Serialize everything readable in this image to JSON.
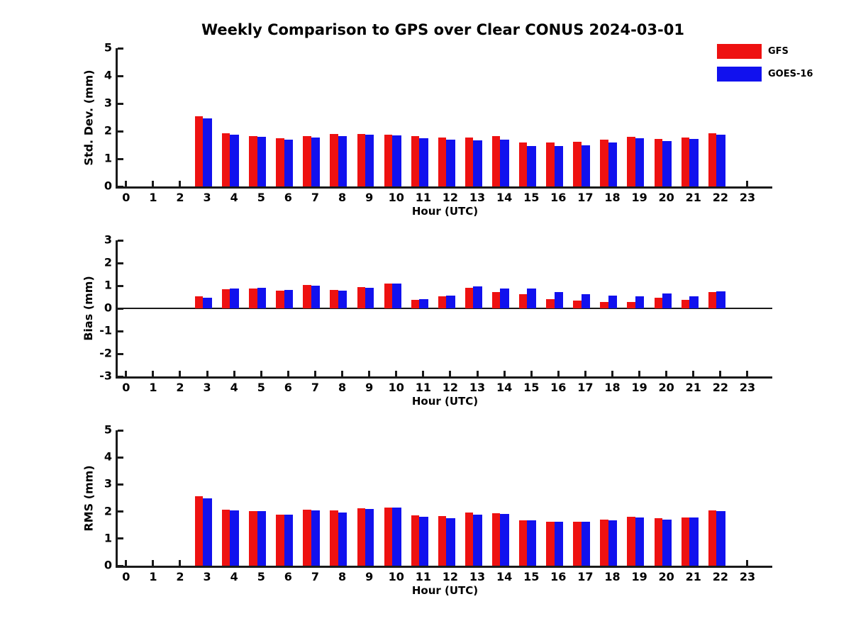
{
  "title": "Weekly Comparison to GPS over Clear CONUS 2024-03-01",
  "colors": {
    "gfs": "#ee1111",
    "goes16": "#1111ee",
    "axis": "#1a1a1a",
    "background": "#ffffff"
  },
  "legend": {
    "position": "top-right",
    "items": [
      {
        "label": "GFS",
        "color": "#ee1111"
      },
      {
        "label": "GOES-16",
        "color": "#1111ee"
      }
    ]
  },
  "chart_data": [
    {
      "type": "bar",
      "title": "",
      "xlabel": "Hour (UTC)",
      "ylabel": "Std. Dev. (mm)",
      "ylim": [
        0,
        5
      ],
      "yticks": [
        0,
        1,
        2,
        3,
        4,
        5
      ],
      "xlim": [
        -0.31,
        23.92
      ],
      "grid": false,
      "categories": [
        0,
        1,
        2,
        3,
        4,
        5,
        6,
        7,
        8,
        9,
        10,
        11,
        12,
        13,
        14,
        15,
        16,
        17,
        18,
        19,
        20,
        21,
        22,
        23
      ],
      "series": [
        {
          "name": "GFS",
          "color": "#ee1111",
          "values": [
            null,
            null,
            null,
            2.55,
            1.92,
            1.81,
            1.74,
            1.81,
            1.9,
            1.9,
            1.88,
            1.82,
            1.77,
            1.76,
            1.83,
            1.59,
            1.58,
            1.61,
            1.69,
            1.8,
            1.72,
            1.77,
            1.93,
            null
          ]
        },
        {
          "name": "GOES-16",
          "color": "#1111ee",
          "values": [
            null,
            null,
            null,
            2.47,
            1.86,
            1.8,
            1.7,
            1.76,
            1.83,
            1.87,
            1.85,
            1.74,
            1.68,
            1.66,
            1.69,
            1.47,
            1.47,
            1.5,
            1.59,
            1.74,
            1.63,
            1.72,
            1.88,
            null
          ]
        }
      ]
    },
    {
      "type": "bar",
      "title": "",
      "xlabel": "Hour (UTC)",
      "ylabel": "Bias (mm)",
      "ylim": [
        -3,
        3
      ],
      "yticks": [
        -3,
        -2,
        -1,
        0,
        1,
        2,
        3
      ],
      "xlim": [
        -0.31,
        23.92
      ],
      "grid": false,
      "zero_line": true,
      "categories": [
        0,
        1,
        2,
        3,
        4,
        5,
        6,
        7,
        8,
        9,
        10,
        11,
        12,
        13,
        14,
        15,
        16,
        17,
        18,
        19,
        20,
        21,
        22,
        23
      ],
      "series": [
        {
          "name": "GFS",
          "color": "#ee1111",
          "values": [
            null,
            null,
            null,
            0.52,
            0.85,
            0.89,
            0.77,
            1.03,
            0.8,
            0.94,
            1.08,
            0.38,
            0.53,
            0.9,
            0.71,
            0.62,
            0.4,
            0.33,
            0.28,
            0.28,
            0.47,
            0.37,
            0.71,
            null
          ]
        },
        {
          "name": "GOES-16",
          "color": "#1111ee",
          "values": [
            null,
            null,
            null,
            0.48,
            0.88,
            0.92,
            0.8,
            1.0,
            0.77,
            0.9,
            1.1,
            0.42,
            0.55,
            0.96,
            0.86,
            0.86,
            0.72,
            0.62,
            0.57,
            0.53,
            0.66,
            0.53,
            0.75,
            null
          ]
        }
      ]
    },
    {
      "type": "bar",
      "title": "",
      "xlabel": "Hour (UTC)",
      "ylabel": "RMS (mm)",
      "ylim": [
        0,
        5
      ],
      "yticks": [
        0,
        1,
        2,
        3,
        4,
        5
      ],
      "xlim": [
        -0.31,
        23.92
      ],
      "grid": false,
      "categories": [
        0,
        1,
        2,
        3,
        4,
        5,
        6,
        7,
        8,
        9,
        10,
        11,
        12,
        13,
        14,
        15,
        16,
        17,
        18,
        19,
        20,
        21,
        22,
        23
      ],
      "series": [
        {
          "name": "GFS",
          "color": "#ee1111",
          "values": [
            null,
            null,
            null,
            2.57,
            2.08,
            2.02,
            1.88,
            2.08,
            2.04,
            2.13,
            2.14,
            1.86,
            1.83,
            1.96,
            1.93,
            1.67,
            1.62,
            1.63,
            1.69,
            1.8,
            1.76,
            1.79,
            2.04,
            null
          ]
        },
        {
          "name": "GOES-16",
          "color": "#1111ee",
          "values": [
            null,
            null,
            null,
            2.49,
            2.05,
            2.01,
            1.88,
            2.04,
            1.96,
            2.09,
            2.15,
            1.8,
            1.76,
            1.89,
            1.9,
            1.67,
            1.62,
            1.62,
            1.67,
            1.78,
            1.7,
            1.79,
            2.02,
            null
          ]
        }
      ]
    }
  ]
}
